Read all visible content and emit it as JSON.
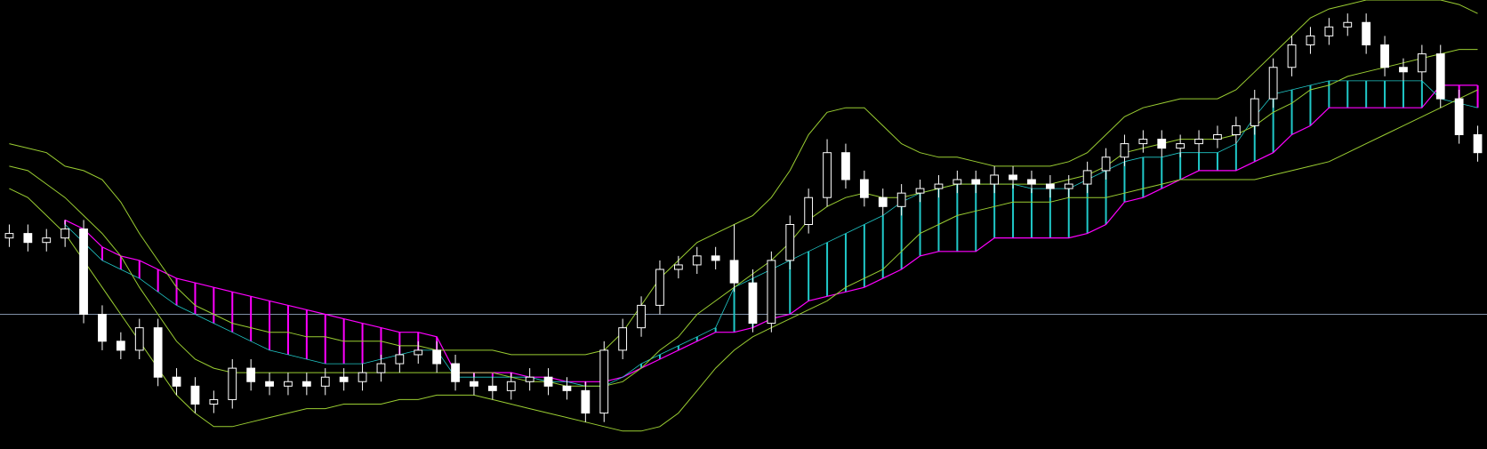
{
  "chart_data": {
    "type": "candlestick",
    "open": [
      47,
      48,
      46,
      47,
      49,
      30,
      24,
      22,
      27,
      16,
      14,
      10,
      11,
      18,
      15,
      14,
      15,
      14,
      16,
      15,
      17,
      19,
      21,
      22,
      19,
      15,
      14,
      13,
      15,
      16,
      14,
      13,
      8,
      22,
      27,
      32,
      40,
      41,
      43,
      42,
      37,
      28,
      42,
      50,
      56,
      66,
      60,
      56,
      54,
      57,
      58,
      59,
      60,
      59,
      61,
      60,
      59,
      58,
      59,
      62,
      65,
      68,
      69,
      67,
      68,
      69,
      70,
      72,
      78,
      85,
      90,
      92,
      94,
      95,
      90,
      85,
      84,
      88,
      78,
      70
    ],
    "high": [
      50,
      50,
      49,
      51,
      51,
      32,
      26,
      29,
      29,
      18,
      16,
      13,
      20,
      20,
      17,
      17,
      17,
      18,
      18,
      19,
      21,
      23,
      24,
      24,
      21,
      17,
      16,
      17,
      18,
      18,
      16,
      15,
      24,
      29,
      34,
      42,
      43,
      45,
      45,
      50,
      40,
      44,
      52,
      58,
      69,
      68,
      62,
      58,
      59,
      60,
      61,
      62,
      62,
      63,
      63,
      62,
      61,
      61,
      64,
      67,
      70,
      71,
      71,
      70,
      71,
      72,
      74,
      80,
      87,
      92,
      94,
      96,
      97,
      97,
      92,
      87,
      90,
      90,
      80,
      72
    ],
    "low": [
      45,
      44,
      44,
      45,
      28,
      22,
      20,
      20,
      14,
      12,
      8,
      8,
      9,
      13,
      12,
      12,
      12,
      12,
      13,
      13,
      15,
      17,
      19,
      17,
      13,
      12,
      11,
      11,
      13,
      12,
      11,
      6,
      6,
      20,
      25,
      30,
      38,
      39,
      40,
      35,
      26,
      26,
      40,
      48,
      54,
      58,
      54,
      52,
      52,
      55,
      56,
      57,
      57,
      57,
      58,
      57,
      56,
      56,
      57,
      60,
      63,
      66,
      65,
      65,
      66,
      67,
      68,
      70,
      76,
      83,
      88,
      90,
      92,
      88,
      83,
      82,
      82,
      76,
      68,
      64
    ],
    "close": [
      48,
      46,
      47,
      49,
      30,
      24,
      22,
      27,
      16,
      14,
      10,
      11,
      18,
      15,
      14,
      15,
      14,
      16,
      15,
      17,
      19,
      21,
      22,
      19,
      15,
      14,
      13,
      15,
      16,
      14,
      13,
      8,
      22,
      27,
      32,
      40,
      41,
      43,
      42,
      37,
      28,
      42,
      50,
      56,
      66,
      60,
      56,
      54,
      57,
      58,
      59,
      60,
      59,
      61,
      60,
      59,
      58,
      59,
      62,
      65,
      68,
      69,
      67,
      68,
      69,
      70,
      72,
      78,
      85,
      90,
      92,
      94,
      95,
      90,
      85,
      84,
      88,
      78,
      70,
      66
    ],
    "up_color": "#000000",
    "down_color": "#ffffff",
    "candle_edge": "#ffffff",
    "bands": {
      "color": "#9acd32",
      "upper": [
        68,
        67,
        66,
        63,
        62,
        60,
        55,
        48,
        42,
        36,
        32,
        30,
        28,
        27,
        26,
        26,
        25,
        25,
        24,
        24,
        24,
        23,
        23,
        22,
        22,
        22,
        22,
        21,
        21,
        21,
        21,
        21,
        22,
        26,
        32,
        38,
        42,
        46,
        48,
        50,
        52,
        56,
        62,
        70,
        75,
        76,
        76,
        72,
        68,
        66,
        65,
        65,
        64,
        63,
        63,
        63,
        63,
        64,
        66,
        70,
        74,
        76,
        77,
        78,
        78,
        78,
        80,
        84,
        88,
        92,
        96,
        98,
        99,
        100,
        100,
        100,
        100,
        100,
        99,
        97
      ],
      "middle": [
        63,
        62,
        59,
        56,
        52,
        48,
        43,
        36,
        30,
        24,
        20,
        18,
        17,
        17,
        17,
        17,
        17,
        17,
        17,
        17,
        17,
        17,
        17,
        17,
        17,
        17,
        17,
        16,
        15,
        15,
        14,
        14,
        14,
        15,
        18,
        22,
        25,
        30,
        33,
        36,
        39,
        42,
        46,
        51,
        54,
        56,
        57,
        56,
        56,
        57,
        58,
        59,
        59,
        59,
        59,
        59,
        59,
        60,
        61,
        63,
        66,
        67,
        68,
        69,
        69,
        69,
        70,
        72,
        75,
        77,
        80,
        81,
        83,
        84,
        85,
        86,
        87,
        88,
        89,
        89
      ],
      "lower": [
        58,
        56,
        52,
        48,
        42,
        36,
        30,
        24,
        18,
        12,
        8,
        5,
        5,
        6,
        7,
        8,
        9,
        9,
        10,
        10,
        10,
        11,
        11,
        12,
        12,
        12,
        11,
        10,
        9,
        8,
        7,
        6,
        5,
        4,
        4,
        5,
        8,
        13,
        18,
        22,
        25,
        27,
        29,
        31,
        33,
        36,
        38,
        40,
        44,
        48,
        50,
        52,
        53,
        54,
        55,
        55,
        55,
        56,
        56,
        56,
        57,
        58,
        59,
        60,
        60,
        60,
        60,
        60,
        61,
        62,
        63,
        64,
        66,
        68,
        70,
        72,
        74,
        76,
        78,
        80
      ]
    },
    "cloud": {
      "up_color": "#20c8c8",
      "down_color": "#ff00ff",
      "span_a": [
        null,
        null,
        null,
        50,
        46,
        42,
        40,
        38,
        35,
        32,
        30,
        28,
        26,
        24,
        22,
        21,
        20,
        19,
        19,
        19,
        20,
        21,
        22,
        22,
        16,
        16,
        16,
        16,
        16,
        15,
        15,
        14,
        14,
        16,
        19,
        21,
        23,
        25,
        27,
        36,
        38,
        40,
        42,
        44,
        46,
        48,
        50,
        52,
        55,
        57,
        58,
        59,
        59,
        59,
        59,
        58,
        58,
        58,
        60,
        62,
        64,
        65,
        65,
        66,
        66,
        66,
        68,
        74,
        79,
        80,
        81,
        82,
        82,
        82,
        82,
        82,
        82,
        78,
        77,
        76
      ],
      "span_b": [
        null,
        null,
        null,
        51,
        49,
        45,
        43,
        42,
        40,
        38,
        37,
        36,
        35,
        34,
        33,
        32,
        31,
        30,
        29,
        28,
        27,
        26,
        26,
        25,
        17,
        17,
        17,
        17,
        16,
        16,
        15,
        15,
        15,
        16,
        18,
        20,
        22,
        24,
        26,
        26,
        27,
        29,
        30,
        33,
        34,
        35,
        36,
        38,
        40,
        43,
        44,
        44,
        44,
        47,
        47,
        47,
        47,
        47,
        48,
        50,
        55,
        56,
        58,
        60,
        62,
        62,
        62,
        64,
        66,
        70,
        72,
        76,
        76,
        76,
        76,
        76,
        76,
        81,
        81,
        81
      ]
    },
    "hline": 30,
    "hline_color": "#7f8fa6",
    "ylim": [
      0,
      100
    ]
  }
}
